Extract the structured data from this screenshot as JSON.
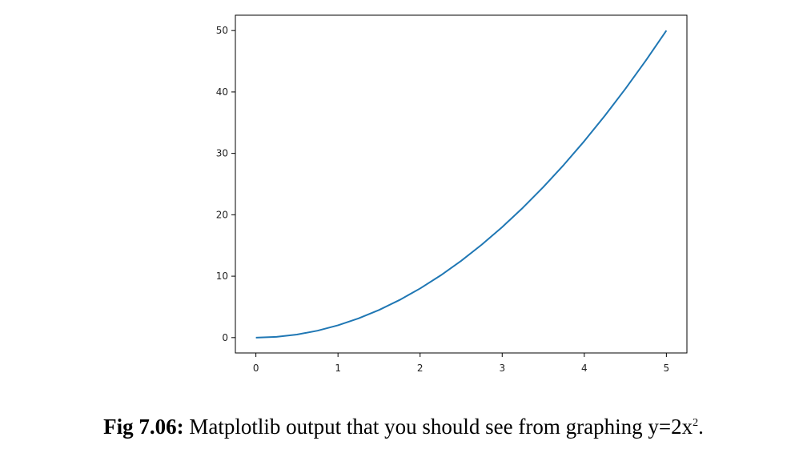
{
  "chart_data": {
    "type": "line",
    "title": "",
    "xlabel": "",
    "ylabel": "",
    "xlim": [
      -0.25,
      5.25
    ],
    "ylim": [
      -2.5,
      52.5
    ],
    "x_ticks": [
      "0",
      "1",
      "2",
      "3",
      "4",
      "5"
    ],
    "y_ticks": [
      "0",
      "10",
      "20",
      "30",
      "40",
      "50"
    ],
    "grid": false,
    "line_color": "#1f77b4",
    "series": [
      {
        "x": [
          0,
          0.25,
          0.5,
          0.75,
          1,
          1.25,
          1.5,
          1.75,
          2,
          2.25,
          2.5,
          2.75,
          3,
          3.25,
          3.5,
          3.75,
          4,
          4.25,
          4.5,
          4.75,
          5
        ],
        "y": [
          0,
          0.125,
          0.5,
          1.125,
          2,
          3.125,
          4.5,
          6.125,
          8,
          10.125,
          12.5,
          15.125,
          18,
          21.125,
          24.5,
          28.125,
          32,
          36.125,
          40.5,
          45.125,
          50
        ]
      }
    ]
  },
  "caption": {
    "label": "Fig 7.06:",
    "text": " Matplotlib output that you should see from graphing y=2x",
    "superscript": "2",
    "end": "."
  }
}
